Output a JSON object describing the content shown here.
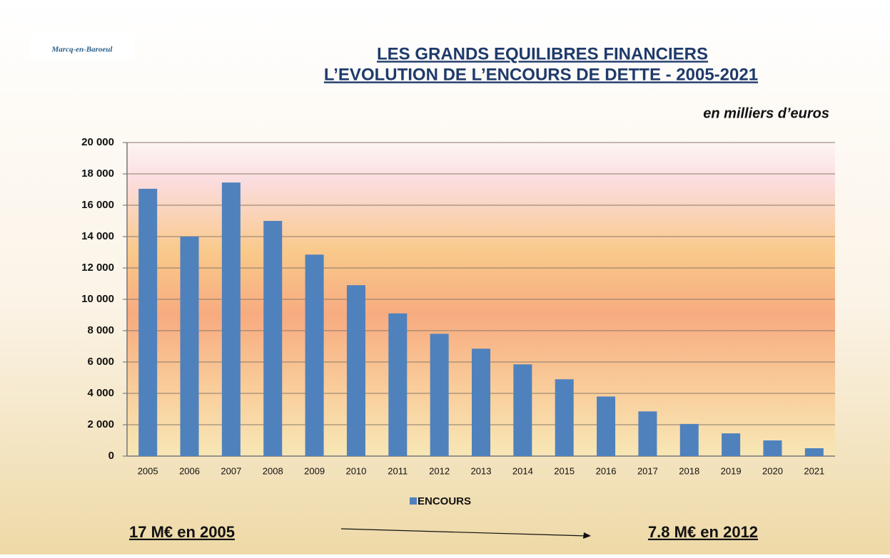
{
  "chart_data": {
    "type": "bar",
    "logo": "Marcq-en-Baroeul",
    "title": "LES GRANDS EQUILIBRES FINANCIERS",
    "subtitle": "L’EVOLUTION DE L’ENCOURS DE DETTE   -  2005-2021",
    "unit_label": "en milliers d’euros",
    "categories": [
      "2005",
      "2006",
      "2007",
      "2008",
      "2009",
      "2010",
      "2011",
      "2012",
      "2013",
      "2014",
      "2015",
      "2016",
      "2017",
      "2018",
      "2019",
      "2020",
      "2021"
    ],
    "series": [
      {
        "name": "ENCOURS",
        "color": "#4f81bd",
        "values": [
          17050,
          14000,
          17450,
          15000,
          12850,
          10900,
          9100,
          7800,
          6850,
          5850,
          4900,
          3800,
          2850,
          2050,
          1450,
          1000,
          500
        ]
      }
    ],
    "ylim": [
      0,
      20000
    ],
    "yticks": [
      0,
      {
        "value": 2000,
        "label": "2 000"
      },
      {
        "value": 4000,
        "label": "4 000"
      },
      {
        "value": 6000,
        "label": "6 000"
      },
      {
        "value": 8000,
        "label": "8 000"
      },
      {
        "value": 10000,
        "label": "10 000"
      },
      {
        "value": 12000,
        "label": "12 000"
      },
      {
        "value": 14000,
        "label": "14 000"
      },
      {
        "value": 16000,
        "label": "16 000"
      },
      {
        "value": 18000,
        "label": "18 000"
      },
      {
        "value": 20000,
        "label": "20 000"
      }
    ],
    "grid": true,
    "legend": "bottom",
    "annotations": [
      "17 M€ en  2005",
      "7.8 M€ en 2012"
    ]
  }
}
